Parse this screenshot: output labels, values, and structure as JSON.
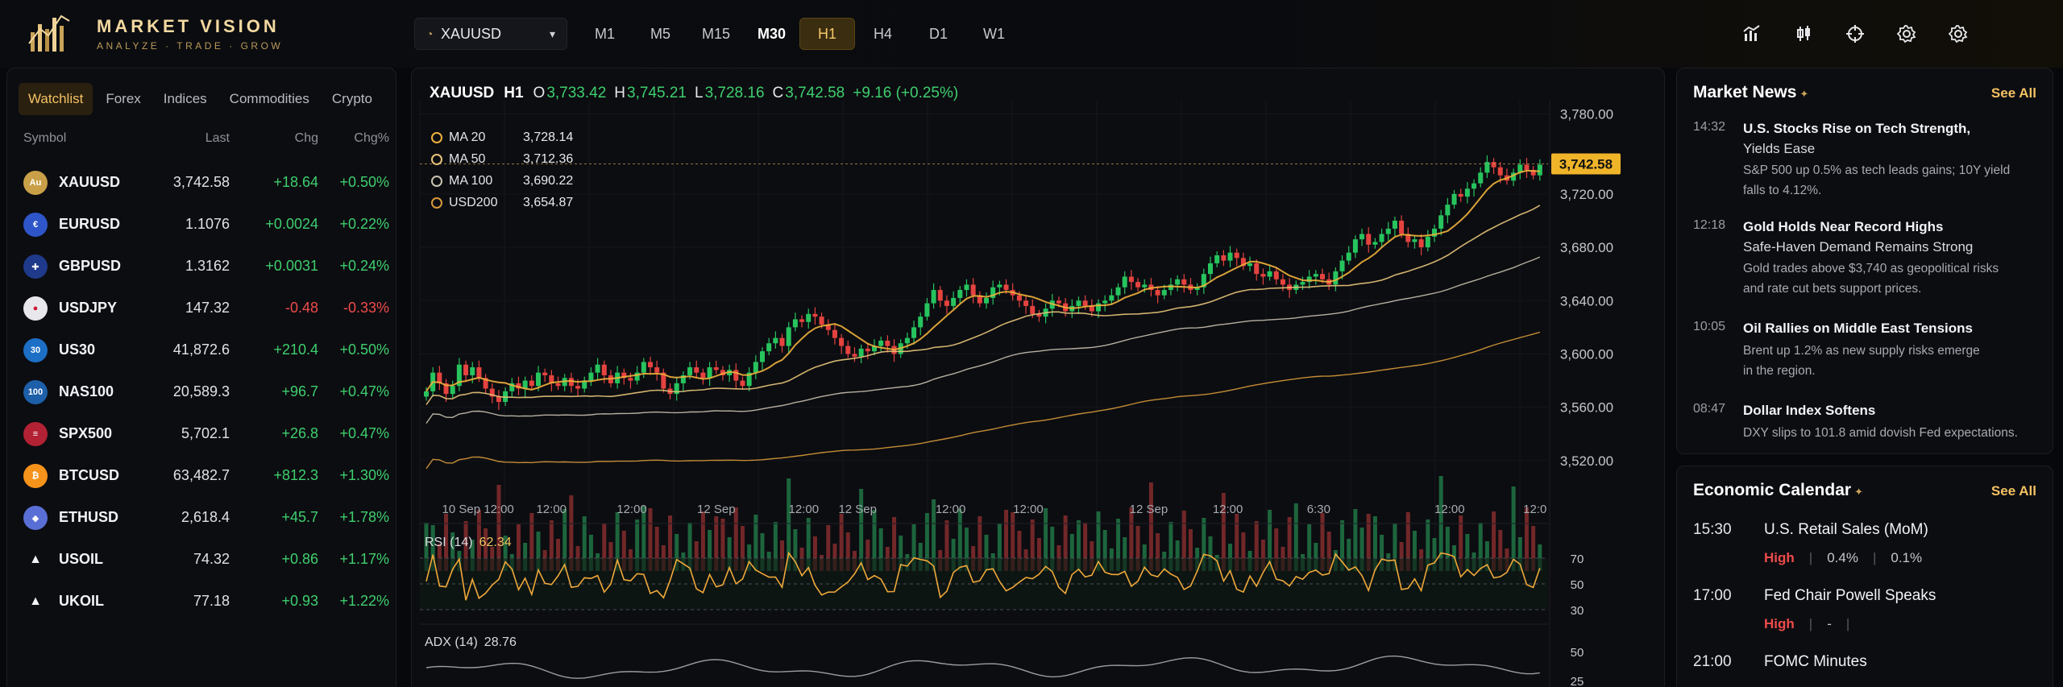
{
  "brand": {
    "name": "MARKET VISION",
    "tagline": "ANALYZE · TRADE · GROW"
  },
  "toolbar": {
    "symbol": "XAUUSD",
    "timeframes": [
      {
        "label": "M1"
      },
      {
        "label": "M5"
      },
      {
        "label": "M15"
      },
      {
        "label": "M30"
      },
      {
        "label": "H1"
      },
      {
        "label": "H4"
      },
      {
        "label": "D1"
      },
      {
        "label": "W1"
      }
    ],
    "active_timeframe": "H1",
    "tools": [
      "indicators-icon",
      "compare-icon",
      "crosshair-icon",
      "settings-icon",
      "gear-icon"
    ]
  },
  "watchlist": {
    "tabs": [
      "Watchlist",
      "Forex",
      "Indices",
      "Commodities",
      "Crypto"
    ],
    "active_tab": "Watchlist",
    "columns": [
      "Symbol",
      "Last",
      "Chg",
      "Chg%"
    ],
    "rows": [
      {
        "symbol": "XAUUSD",
        "last": "3,742.58",
        "chg": "+18.64",
        "pct": "+0.50%",
        "dir": "up",
        "icon": "gold-coin-icon",
        "color": "#c9a047"
      },
      {
        "symbol": "EURUSD",
        "last": "1.1076",
        "chg": "+0.0024",
        "pct": "+0.22%",
        "dir": "up",
        "icon": "eu-flag-icon",
        "color": "#2e56c9"
      },
      {
        "symbol": "GBPUSD",
        "last": "1.3162",
        "chg": "+0.0031",
        "pct": "+0.24%",
        "dir": "up",
        "icon": "uk-flag-icon",
        "color": "#1f3a8a"
      },
      {
        "symbol": "USDJPY",
        "last": "147.32",
        "chg": "-0.48",
        "pct": "-0.33%",
        "dir": "down",
        "icon": "jp-flag-icon",
        "color": "#e8e8ec"
      },
      {
        "symbol": "US30",
        "last": "41,872.6",
        "chg": "+210.4",
        "pct": "+0.50%",
        "dir": "up",
        "icon": "us30-icon",
        "color": "#1c6fc4"
      },
      {
        "symbol": "NAS100",
        "last": "20,589.3",
        "chg": "+96.7",
        "pct": "+0.47%",
        "dir": "up",
        "icon": "nas100-icon",
        "color": "#1d5fa8"
      },
      {
        "symbol": "SPX500",
        "last": "5,702.1",
        "chg": "+26.8",
        "pct": "+0.47%",
        "dir": "up",
        "icon": "us-flag-icon",
        "color": "#b22234"
      },
      {
        "symbol": "BTCUSD",
        "last": "63,482.7",
        "chg": "+812.3",
        "pct": "+1.30%",
        "dir": "up",
        "icon": "bitcoin-icon",
        "color": "#f7931a"
      },
      {
        "symbol": "ETHUSD",
        "last": "2,618.4",
        "chg": "+45.7",
        "pct": "+1.78%",
        "dir": "up",
        "icon": "ethereum-icon",
        "color": "#5a6fd6"
      },
      {
        "symbol": "USOIL",
        "last": "74.32",
        "chg": "+0.86",
        "pct": "+1.17%",
        "dir": "up",
        "icon": "oil-drop-icon",
        "color": "#0c0d11"
      },
      {
        "symbol": "UKOIL",
        "last": "77.18",
        "chg": "+0.93",
        "pct": "+1.22%",
        "dir": "up",
        "icon": "oil-drop-icon",
        "color": "#0c0d11"
      }
    ]
  },
  "chart": {
    "symbol": "XAUUSD",
    "timeframe": "H1",
    "ohlc": {
      "o": "3,733.42",
      "h": "3,745.21",
      "l": "3,728.16",
      "c": "3,742.58",
      "change": "+9.16 (+0.25%)"
    },
    "ma": [
      {
        "name": "MA 20",
        "value": "3,728.14",
        "color": "#f0b13c"
      },
      {
        "name": "MA 50",
        "value": "3,712.36",
        "color": "#e8c57a"
      },
      {
        "name": "MA 100",
        "value": "3,690.22",
        "color": "#c9c2b0"
      },
      {
        "name": "USD200",
        "value": "3,654.87",
        "color": "#d89a3a"
      }
    ],
    "last_price_label": "3,742.58",
    "x_labels": [
      "10 Sep 12:00",
      "12:00",
      "12:00",
      "12 Sep",
      "12:00",
      "12 Sep",
      "12:00",
      "12:00",
      "12 Sep",
      "12:00",
      "6:30",
      "12:00",
      "12:0"
    ],
    "rsi_label": "RSI (14)",
    "rsi_value": "62.34",
    "rsi_levels": [
      "70",
      "50",
      "30"
    ],
    "adx_label": "ADX (14)",
    "adx_value": "28.76",
    "adx_levels": [
      "50",
      "25"
    ]
  },
  "chart_data": {
    "type": "candlestick",
    "title": "",
    "xlabel": "",
    "ylabel": "",
    "ylim": [
      3500,
      3790
    ],
    "yticks": [
      3520,
      3560,
      3600,
      3640,
      3680,
      3720,
      3780
    ],
    "ytick_labels": [
      "3,520.00",
      "3,560.00",
      "3,600.00",
      "3,640.00",
      "3,680.00",
      "3,720.00",
      "3,780.00"
    ],
    "last_price": 3742.58,
    "closes": [
      3572,
      3586,
      3578,
      3570,
      3576,
      3592,
      3584,
      3590,
      3582,
      3574,
      3568,
      3564,
      3572,
      3578,
      3574,
      3580,
      3576,
      3586,
      3584,
      3578,
      3576,
      3582,
      3576,
      3574,
      3580,
      3586,
      3592,
      3584,
      3578,
      3586,
      3582,
      3580,
      3586,
      3594,
      3590,
      3586,
      3574,
      3570,
      3578,
      3584,
      3590,
      3586,
      3582,
      3590,
      3588,
      3584,
      3588,
      3580,
      3576,
      3586,
      3594,
      3602,
      3608,
      3612,
      3606,
      3620,
      3626,
      3624,
      3630,
      3628,
      3622,
      3618,
      3612,
      3606,
      3600,
      3598,
      3604,
      3602,
      3606,
      3610,
      3606,
      3600,
      3608,
      3612,
      3620,
      3628,
      3638,
      3648,
      3640,
      3636,
      3642,
      3648,
      3652,
      3644,
      3638,
      3642,
      3650,
      3652,
      3648,
      3644,
      3640,
      3636,
      3630,
      3628,
      3634,
      3640,
      3638,
      3632,
      3636,
      3640,
      3636,
      3632,
      3638,
      3640,
      3644,
      3650,
      3658,
      3654,
      3650,
      3652,
      3648,
      3644,
      3648,
      3652,
      3656,
      3652,
      3648,
      3650,
      3660,
      3668,
      3674,
      3670,
      3676,
      3672,
      3666,
      3668,
      3660,
      3658,
      3662,
      3656,
      3652,
      3648,
      3652,
      3654,
      3658,
      3660,
      3656,
      3652,
      3662,
      3670,
      3676,
      3686,
      3690,
      3682,
      3684,
      3690,
      3694,
      3700,
      3690,
      3684,
      3686,
      3680,
      3688,
      3694,
      3704,
      3712,
      3720,
      3718,
      3724,
      3728,
      3736,
      3744,
      3740,
      3734,
      3730,
      3736,
      3742,
      3738,
      3734,
      3742
    ],
    "ma_lines": [
      {
        "name": "MA 20",
        "end": 3728.14
      },
      {
        "name": "MA 50",
        "end": 3712.36
      },
      {
        "name": "MA 100",
        "end": 3690.22
      },
      {
        "name": "USD200",
        "end": 3654.87
      }
    ]
  },
  "news": {
    "title": "Market News",
    "see_all": "See All",
    "items": [
      {
        "time": "14:32",
        "headline": "U.S. Stocks Rise on Tech Strength,",
        "sub": "Yields Ease",
        "desc": [
          "S&P 500 up 0.5% as tech leads gains; 10Y yield",
          "falls to 4.12%."
        ]
      },
      {
        "time": "12:18",
        "headline": "Gold Holds Near Record Highs",
        "sub": "Safe-Haven Demand Remains Strong",
        "desc": [
          "Gold trades above $3,740 as geopolitical risks",
          "and rate cut bets support prices."
        ]
      },
      {
        "time": "10:05",
        "headline": "Oil Rallies on Middle East Tensions",
        "sub": "",
        "desc": [
          "Brent up 1.2% as new supply risks emerge",
          "in the region."
        ]
      },
      {
        "time": "08:47",
        "headline": "Dollar Index Softens",
        "sub": "",
        "desc": [
          "DXY slips to 101.8 amid dovish Fed expectations."
        ]
      }
    ]
  },
  "calendar": {
    "title": "Economic Calendar",
    "see_all": "See All",
    "items": [
      {
        "time": "15:30",
        "event": "U.S. Retail Sales (MoM)",
        "impact": "High",
        "forecast": "0.4%",
        "previous": "0.1%"
      },
      {
        "time": "17:00",
        "event": "Fed Chair Powell Speaks",
        "impact": "High",
        "forecast": "-",
        "previous": ""
      },
      {
        "time": "21:00",
        "event": "FOMC Minutes",
        "impact": "",
        "forecast": "",
        "previous": ""
      }
    ]
  }
}
